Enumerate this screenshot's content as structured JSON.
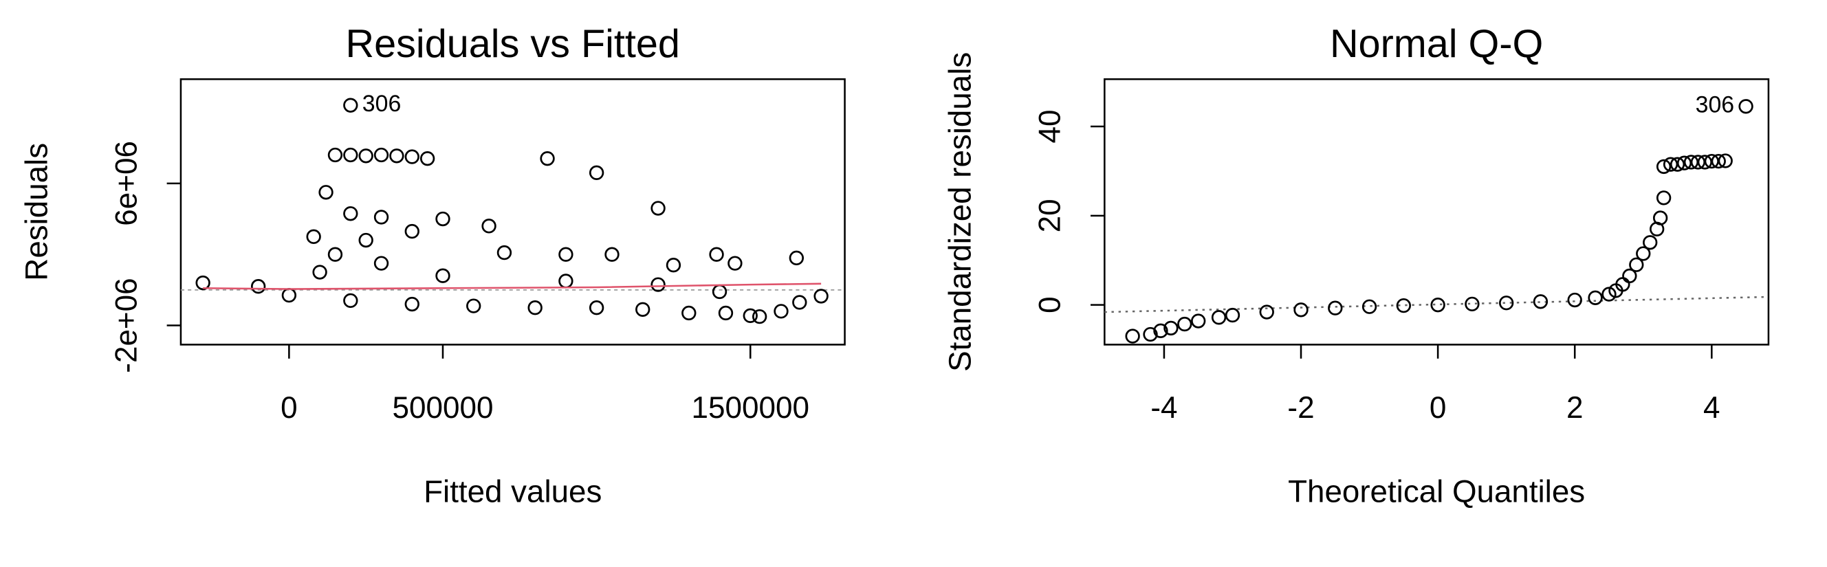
{
  "chart_data": [
    {
      "type": "scatter",
      "title": "Residuals vs Fitted",
      "x_label": "Fitted values",
      "y_label": "Residuals",
      "xlim": [
        -352000,
        1807000
      ],
      "ylim": [
        -3080000,
        11870000
      ],
      "xticks": [
        0,
        500000,
        1500000
      ],
      "yticks": [
        {
          "value": -2000000,
          "label": "-2e+06"
        },
        {
          "value": 6000000,
          "label": "6e+06"
        }
      ],
      "x": [
        150000,
        200000,
        250000,
        300000,
        350000,
        400000,
        450000,
        200000,
        840000,
        1000000,
        1200000,
        120000,
        200000,
        300000,
        500000,
        650000,
        80000,
        400000,
        250000,
        700000,
        900000,
        1050000,
        1250000,
        1390000,
        1450000,
        1650000,
        -280000,
        -100000,
        0,
        200000,
        400000,
        600000,
        800000,
        1000000,
        1150000,
        1300000,
        1420000,
        1500000,
        1530000,
        1600000,
        1730000,
        1660000,
        1400000,
        1200000,
        900000,
        500000,
        300000,
        100000,
        150000
      ],
      "y": [
        7600000,
        7600000,
        7550000,
        7600000,
        7550000,
        7500000,
        7400000,
        10400000,
        7400000,
        6600000,
        4600000,
        5500000,
        4300000,
        4100000,
        4000000,
        3600000,
        3000000,
        3300000,
        2800000,
        2100000,
        2000000,
        2000000,
        1400000,
        2000000,
        1500000,
        1800000,
        400000,
        200000,
        -300000,
        -600000,
        -800000,
        -900000,
        -1000000,
        -1000000,
        -1100000,
        -1300000,
        -1300000,
        -1450000,
        -1500000,
        -1200000,
        -350000,
        -700000,
        -100000,
        300000,
        500000,
        800000,
        1500000,
        1000000,
        2000000
      ],
      "smooth": {
        "color": "#df536b",
        "x": [
          -280000,
          0,
          500000,
          1000000,
          1500000,
          1730000
        ],
        "y": [
          100000,
          50000,
          100000,
          150000,
          300000,
          350000
        ]
      },
      "annotations": [
        {
          "text": "306",
          "x": 200000,
          "y": 10400000
        }
      ]
    },
    {
      "type": "scatter",
      "title": "Normal Q-Q",
      "x_label": "Theoretical Quantiles",
      "y_label": "Standardized residuals",
      "xlim": [
        -4.87,
        4.83
      ],
      "ylim": [
        -8.9,
        50.6
      ],
      "xticks": [
        -4,
        -2,
        0,
        2,
        4
      ],
      "yticks": [
        0,
        20,
        40
      ],
      "x": [
        -4.46,
        -4.2,
        -4.05,
        -3.9,
        -3.7,
        -3.5,
        -3.2,
        -3.0,
        -2.5,
        -2.0,
        -1.5,
        -1.0,
        -0.5,
        0,
        0.5,
        1.0,
        1.5,
        2.0,
        2.3,
        2.5,
        2.6,
        2.7,
        2.8,
        2.9,
        3.0,
        3.1,
        3.2,
        3.25,
        3.3,
        3.3,
        3.4,
        3.5,
        3.6,
        3.7,
        3.8,
        3.9,
        4.0,
        4.1,
        4.2,
        4.5
      ],
      "y": [
        -7,
        -6.6,
        -5.8,
        -5.2,
        -4.3,
        -3.6,
        -2.8,
        -2.3,
        -1.6,
        -1.1,
        -0.7,
        -0.4,
        -0.15,
        0,
        0.2,
        0.45,
        0.75,
        1.1,
        1.6,
        2.4,
        3.2,
        4.6,
        6.5,
        9,
        11.5,
        14,
        17,
        19.5,
        24,
        31,
        31.5,
        31.5,
        31.8,
        32,
        32,
        32,
        32.2,
        32.2,
        32.3,
        44.5
      ],
      "qqline": {
        "x": [
          -4.87,
          4.83
        ],
        "y": [
          -1.6,
          1.8
        ]
      },
      "annotations": [
        {
          "text": "306",
          "x": 4.5,
          "y": 44.5
        }
      ]
    }
  ]
}
